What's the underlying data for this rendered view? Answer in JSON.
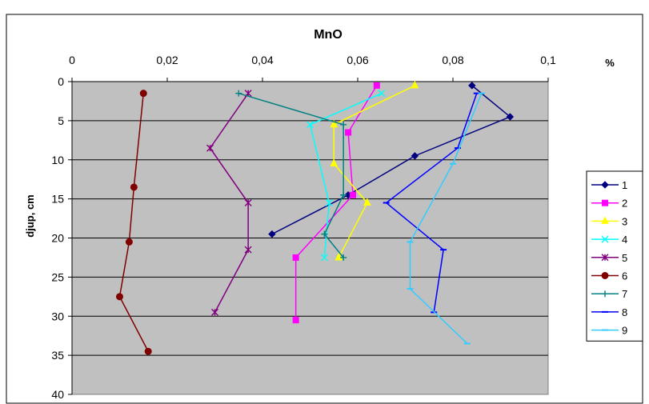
{
  "chart_data": {
    "type": "line",
    "title": "MnO",
    "xlabel": "%",
    "ylabel": "djup, cm",
    "xlim": [
      0,
      0.1
    ],
    "ylim": [
      40,
      0
    ],
    "x_axis_position": "top",
    "x_ticks": [
      "0",
      "0,02",
      "0,04",
      "0,06",
      "0,08",
      "0,1"
    ],
    "y_ticks": [
      "0",
      "5",
      "10",
      "15",
      "20",
      "25",
      "30",
      "35",
      "40"
    ],
    "grid": "horizontal",
    "legend_position": "right",
    "plot_background": "#c0c0c0",
    "series": [
      {
        "name": "1",
        "color": "#000080",
        "marker": "diamond",
        "points": [
          [
            0.084,
            0.5
          ],
          [
            0.092,
            4.5
          ],
          [
            0.072,
            9.5
          ],
          [
            0.058,
            14.5
          ],
          [
            0.042,
            19.5
          ]
        ]
      },
      {
        "name": "2",
        "color": "#ff00ff",
        "marker": "square",
        "points": [
          [
            0.064,
            0.5
          ],
          [
            0.058,
            6.5
          ],
          [
            0.059,
            14.5
          ],
          [
            0.047,
            22.5
          ],
          [
            0.047,
            30.5
          ]
        ]
      },
      {
        "name": "3",
        "color": "#ffff00",
        "marker": "triangle",
        "points": [
          [
            0.072,
            0.5
          ],
          [
            0.055,
            5.5
          ],
          [
            0.055,
            10.5
          ],
          [
            0.062,
            15.5
          ],
          [
            0.056,
            22.5
          ]
        ]
      },
      {
        "name": "4",
        "color": "#00ffff",
        "marker": "x",
        "points": [
          [
            0.065,
            1.5
          ],
          [
            0.05,
            5.5
          ],
          [
            0.054,
            15.5
          ],
          [
            0.053,
            22.5
          ]
        ]
      },
      {
        "name": "5",
        "color": "#800080",
        "marker": "star",
        "points": [
          [
            0.037,
            1.5
          ],
          [
            0.029,
            8.5
          ],
          [
            0.037,
            15.5
          ],
          [
            0.037,
            21.5
          ],
          [
            0.03,
            29.5
          ]
        ]
      },
      {
        "name": "6",
        "color": "#800000",
        "marker": "circle",
        "points": [
          [
            0.015,
            1.5
          ],
          [
            0.013,
            13.5
          ],
          [
            0.012,
            20.5
          ],
          [
            0.01,
            27.5
          ],
          [
            0.016,
            34.5
          ]
        ]
      },
      {
        "name": "7",
        "color": "#008080",
        "marker": "plus",
        "points": [
          [
            0.035,
            1.5
          ],
          [
            0.057,
            5.5
          ],
          [
            0.057,
            14.5
          ],
          [
            0.053,
            19.5
          ],
          [
            0.057,
            22.5
          ]
        ]
      },
      {
        "name": "8",
        "color": "#0000ff",
        "marker": "dash",
        "points": [
          [
            0.085,
            1.5
          ],
          [
            0.081,
            8.5
          ],
          [
            0.066,
            15.5
          ],
          [
            0.078,
            21.5
          ],
          [
            0.076,
            29.5
          ]
        ]
      },
      {
        "name": "9",
        "color": "#33ccff",
        "marker": "dash",
        "points": [
          [
            0.086,
            1.5
          ],
          [
            0.08,
            10.5
          ],
          [
            0.071,
            20.5
          ],
          [
            0.071,
            26.5
          ],
          [
            0.083,
            33.5
          ]
        ]
      }
    ]
  }
}
